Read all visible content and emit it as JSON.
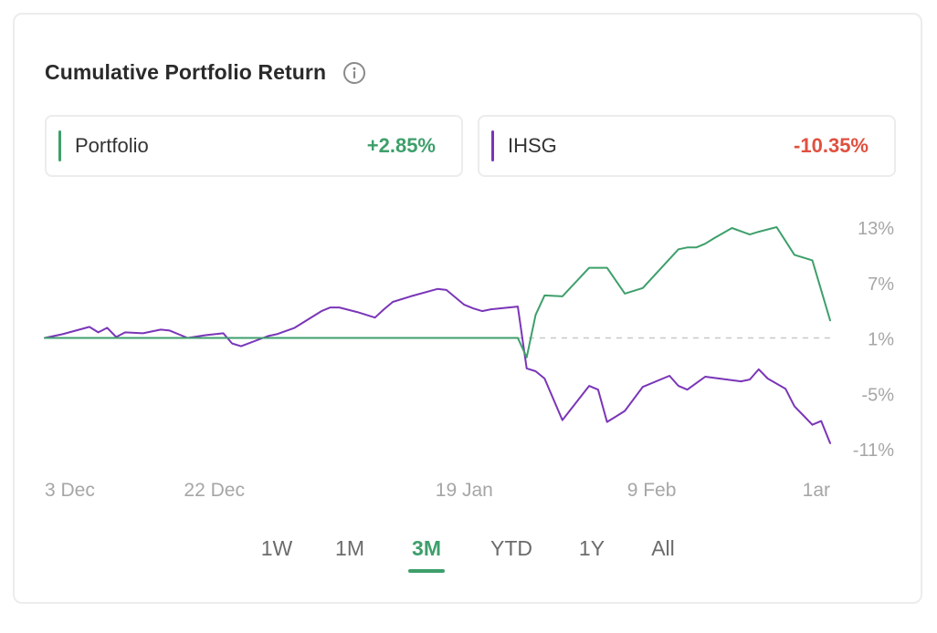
{
  "card": {
    "title": "Cumulative Portfolio Return"
  },
  "legend": {
    "portfolio": {
      "name": "Portfolio",
      "value": "+2.85%",
      "color": "#3e9f6b"
    },
    "index": {
      "name": "IHSG",
      "value": "-10.35%",
      "color": "#e0503f"
    }
  },
  "tabs": {
    "items": [
      "1W",
      "1M",
      "3M",
      "YTD",
      "1Y",
      "All"
    ],
    "active": "3M"
  },
  "colors": {
    "portfolio_line": "#3e9f6b",
    "index_line": "#7a35b8",
    "axis_text": "#a6a6a6",
    "zero_line": "#c8c8c8"
  },
  "chart_data": {
    "type": "line",
    "x_ticks": [
      {
        "label": "3 Dec",
        "x": 0
      },
      {
        "label": "22 Dec",
        "x": 19
      },
      {
        "label": "19 Jan",
        "x": 47
      },
      {
        "label": "9 Feb",
        "x": 68
      },
      {
        "label": "1ar",
        "x": 88
      }
    ],
    "y_ticks": [
      "13%",
      "7%",
      "1%",
      "-5%",
      "-11%"
    ],
    "y_tick_values": [
      13,
      7,
      1,
      -5,
      -11
    ],
    "ylim": [
      -11.5,
      14
    ],
    "xlim": [
      0,
      88
    ],
    "zero_line": 1,
    "series": [
      {
        "name": "Portfolio",
        "x": [
          0,
          53,
          54,
          55,
          56,
          58,
          61,
          63,
          65,
          67,
          71,
          72,
          73,
          74,
          75,
          77,
          79,
          80,
          82,
          84,
          86,
          88
        ],
        "y": [
          1,
          1,
          -1.1,
          3.5,
          5.6,
          5.5,
          8.6,
          8.6,
          5.8,
          6.4,
          10.6,
          10.8,
          10.8,
          11.2,
          11.8,
          12.9,
          12.2,
          12.5,
          13.0,
          10.0,
          9.4,
          2.9
        ]
      },
      {
        "name": "IHSG",
        "x": [
          0,
          2,
          5,
          6,
          7,
          8,
          9,
          11,
          13,
          14,
          16,
          18,
          20,
          21,
          22,
          25,
          26,
          28,
          31,
          32,
          33,
          35,
          37,
          38,
          39,
          41,
          44,
          45,
          47,
          48,
          49,
          50,
          53,
          54,
          55,
          56,
          58,
          61,
          62,
          63,
          64,
          65,
          67,
          70,
          71,
          72,
          74,
          78,
          79,
          80,
          81,
          83,
          84,
          85,
          86,
          87,
          88
        ],
        "y": [
          1,
          1.4,
          2.2,
          1.6,
          2.1,
          1.1,
          1.6,
          1.5,
          1.9,
          1.8,
          1.0,
          1.3,
          1.5,
          0.4,
          0.1,
          1.2,
          1.4,
          2.1,
          3.9,
          4.3,
          4.3,
          3.8,
          3.2,
          4.1,
          4.9,
          5.5,
          6.3,
          6.2,
          4.6,
          4.2,
          3.9,
          4.1,
          4.4,
          -2.3,
          -2.6,
          -3.4,
          -7.9,
          -4.2,
          -4.6,
          -8.1,
          -7.5,
          -6.9,
          -4.3,
          -3.1,
          -4.2,
          -4.6,
          -3.2,
          -3.7,
          -3.5,
          -2.4,
          -3.4,
          -4.5,
          -6.4,
          -7.4,
          -8.4,
          -8.0,
          -10.4
        ]
      }
    ]
  }
}
